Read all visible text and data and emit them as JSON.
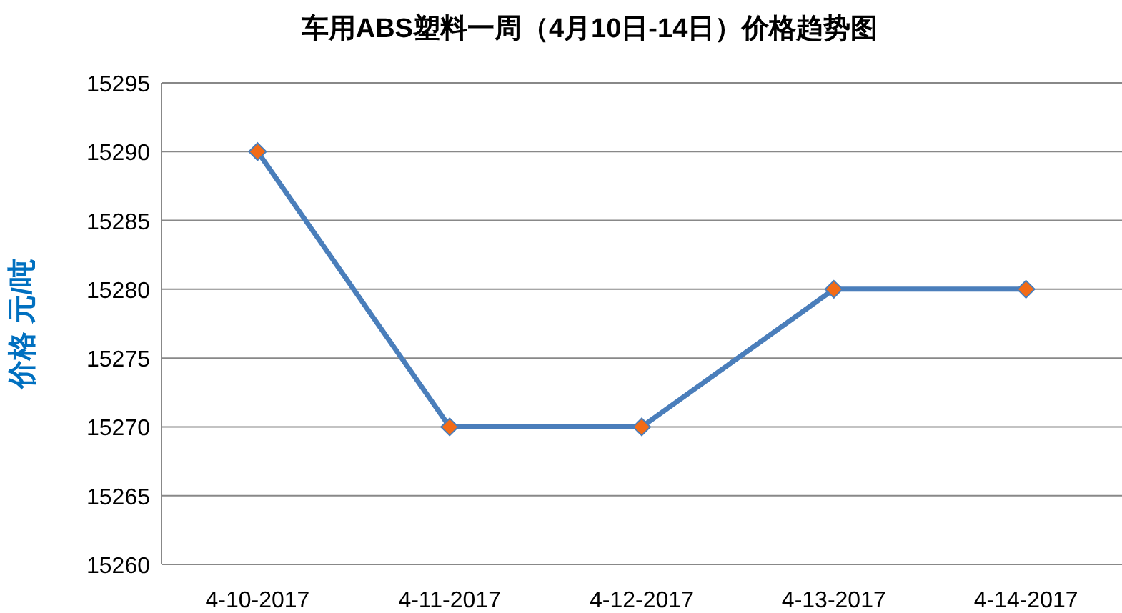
{
  "chart_data": {
    "type": "line",
    "title": "车用ABS塑料一周（4月10日-14日）价格趋势图",
    "ylabel": "价格 元/吨",
    "categories": [
      "4-10-2017",
      "4-11-2017",
      "4-12-2017",
      "4-13-2017",
      "4-14-2017"
    ],
    "series": [
      {
        "color": "#4a7ebb",
        "colors": [
          "#f36b16",
          "#f36b16",
          "#f36b16",
          "#f36b16",
          "#f36b16"
        ],
        "values": [
          15290,
          15270,
          15270,
          15280,
          15280
        ]
      }
    ],
    "ylim": [
      15260,
      15295
    ],
    "yticks": [
      15260,
      15265,
      15270,
      15275,
      15280,
      15285,
      15290,
      15295
    ],
    "grid": "y",
    "marker": "diamond",
    "line_style": "solid"
  }
}
